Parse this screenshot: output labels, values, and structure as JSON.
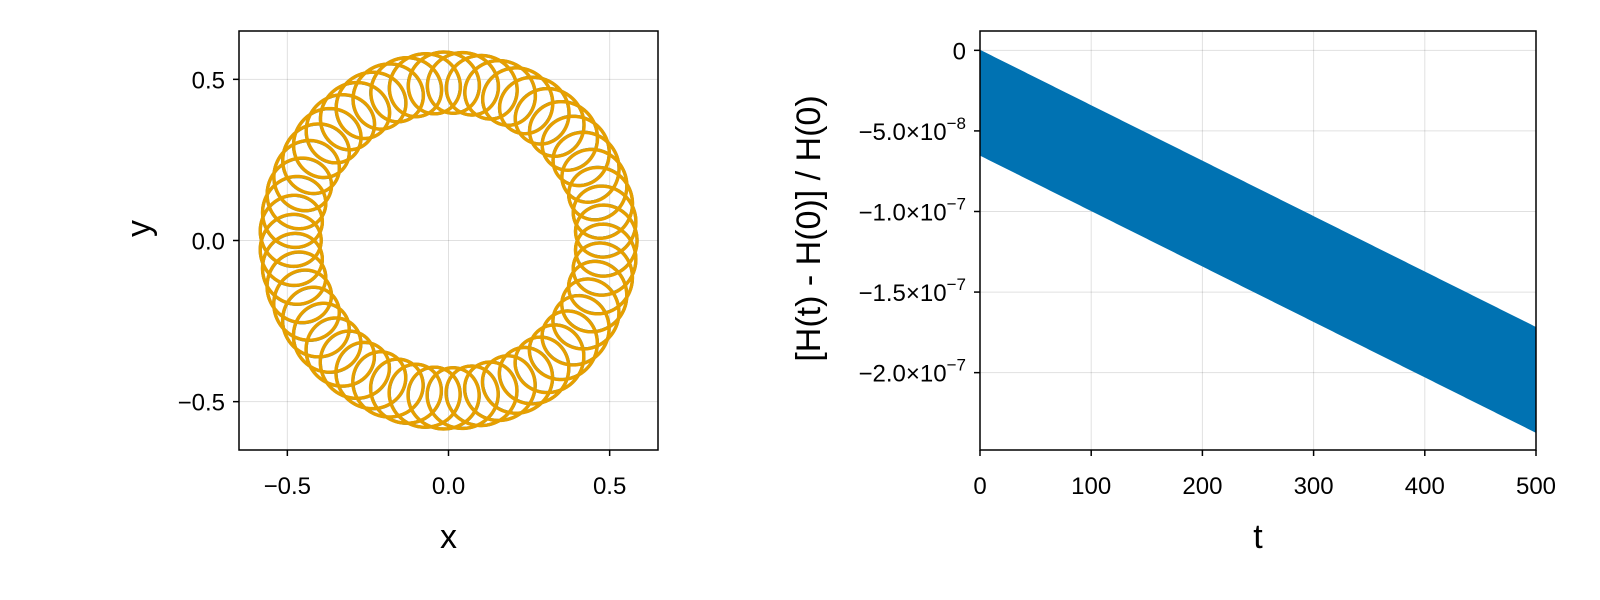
{
  "chart_data": [
    {
      "type": "line",
      "xlabel": "x",
      "ylabel": "y",
      "xlim": [
        -0.65,
        0.65
      ],
      "ylim": [
        -0.65,
        0.65
      ],
      "xticks": [
        -0.5,
        0.0,
        0.5
      ],
      "xtick_labels": [
        "−0.5",
        "0.0",
        "0.5"
      ],
      "yticks": [
        -0.5,
        0.0,
        0.5
      ],
      "ytick_labels": [
        "−0.5",
        "0.0",
        "0.5"
      ],
      "grid": true,
      "aspect": "equal",
      "series": [
        {
          "color": "#0072b2",
          "style": "solid",
          "curve": "epicycle orbit",
          "mean_radius": 0.49,
          "epicycle_radius": 0.095,
          "lobes": 52,
          "min_radius": 0.395,
          "max_radius": 0.585
        },
        {
          "color": "#e69f00",
          "style": "solid",
          "curve": "epicycle orbit",
          "mean_radius": 0.49,
          "epicycle_radius": 0.095,
          "lobes": 52,
          "min_radius": 0.395,
          "max_radius": 0.585
        }
      ]
    },
    {
      "type": "area",
      "xlabel": "t",
      "ylabel": "[H(t) - H(0)] / H(0)",
      "xlim": [
        0,
        500
      ],
      "ylim": [
        -2.48e-07,
        1.2e-08
      ],
      "xticks": [
        0,
        100,
        200,
        300,
        400,
        500
      ],
      "xtick_labels": [
        "0",
        "100",
        "200",
        "300",
        "400",
        "500"
      ],
      "yticks": [
        0,
        -5e-08,
        -1e-07,
        -1.5e-07,
        -2e-07
      ],
      "ytick_labels": [
        {
          "mantissa": "0",
          "exponent": ""
        },
        {
          "mantissa": "−5.0×10",
          "exponent": "−8"
        },
        {
          "mantissa": "−1.0×10",
          "exponent": "−7"
        },
        {
          "mantissa": "−1.5×10",
          "exponent": "−7"
        },
        {
          "mantissa": "−2.0×10",
          "exponent": "−7"
        }
      ],
      "grid": true,
      "series": [
        {
          "color": "#0072b2",
          "x": [
            0,
            500
          ],
          "upper": [
            0,
            -1.72e-07
          ],
          "lower": [
            -6.5e-08,
            -2.37e-07
          ]
        }
      ]
    }
  ]
}
